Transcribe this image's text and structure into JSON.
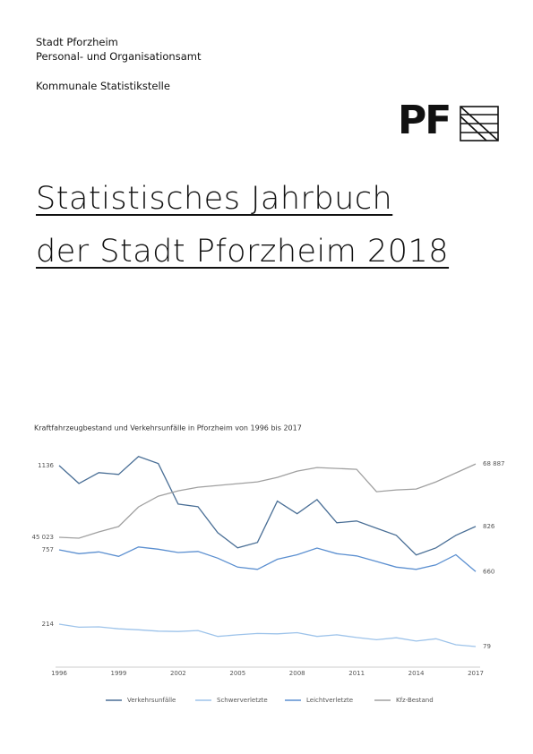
{
  "header": {
    "lines": [
      "Stadt Pforzheim",
      "Personal- und Organisationsamt"
    ],
    "department": "Kommunale Statistikstelle",
    "logo": "PF"
  },
  "title": [
    "Statistisches Jahrbuch",
    "der Stadt Pforzheim 2018"
  ],
  "chart_data": {
    "type": "line",
    "title": "Kraftfahrzeugbestand und Verkehrsunfälle in Pforzheim von 1996 bis 2017",
    "categories": [
      "1996",
      null,
      null,
      "1999",
      null,
      null,
      "2002",
      null,
      null,
      "2005",
      null,
      null,
      "2008",
      null,
      null,
      "2011",
      null,
      null,
      "2014",
      null,
      null,
      "2017"
    ],
    "series": [
      {
        "name": "Verkehrsunfälle",
        "color": "#4a6f96",
        "ylim": [
          110,
          1204
        ],
        "values": [
          1136,
          1045,
          1100,
          1091,
          1182,
          1146,
          940,
          927,
          794,
          717,
          745,
          955,
          891,
          963,
          845,
          854,
          817,
          781,
          681,
          717,
          781,
          826
        ],
        "value_labels": [
          "1136",
          null,
          null,
          null,
          null,
          null,
          null,
          null,
          null,
          null,
          null,
          null,
          null,
          null,
          null,
          null,
          null,
          null,
          null,
          null,
          null,
          "826"
        ]
      },
      {
        "name": "Schwerverletzte",
        "color": "#9dc3ea",
        "ylim": [
          -45,
          1251
        ],
        "values": [
          214,
          196,
          198,
          186,
          180,
          172,
          170,
          176,
          140,
          150,
          158,
          156,
          163,
          140,
          150,
          134,
          120,
          132,
          112,
          126,
          90,
          79
        ],
        "value_labels": [
          "214",
          null,
          null,
          null,
          null,
          null,
          null,
          null,
          null,
          null,
          null,
          null,
          null,
          null,
          null,
          null,
          null,
          null,
          null,
          null,
          null,
          "79"
        ]
      },
      {
        "name": "Leichtverletzte",
        "color": "#5b8fd0",
        "ylim": [
          233,
          1193
        ],
        "values": [
          757,
          740,
          748,
          728,
          770,
          760,
          745,
          750,
          720,
          680,
          670,
          715,
          735,
          765,
          740,
          730,
          705,
          680,
          670,
          690,
          735,
          660
        ],
        "value_labels": [
          "757",
          null,
          null,
          null,
          null,
          null,
          null,
          null,
          null,
          null,
          null,
          null,
          null,
          null,
          null,
          null,
          null,
          null,
          null,
          null,
          null,
          "660"
        ]
      },
      {
        "name": "Kfz-Bestand",
        "color": "#a0a0a0",
        "ylim": [
          2800,
          72700
        ],
        "values": [
          45023,
          44732,
          46769,
          48515,
          54917,
          58409,
          60155,
          61319,
          61901,
          62483,
          63065,
          64520,
          66557,
          67721,
          67430,
          67139,
          59864,
          60446,
          60737,
          63065,
          65975,
          68887
        ],
        "value_labels": [
          "45 023",
          null,
          null,
          null,
          null,
          null,
          null,
          null,
          null,
          null,
          null,
          null,
          null,
          null,
          null,
          null,
          null,
          null,
          null,
          null,
          null,
          "68 887"
        ]
      }
    ]
  }
}
